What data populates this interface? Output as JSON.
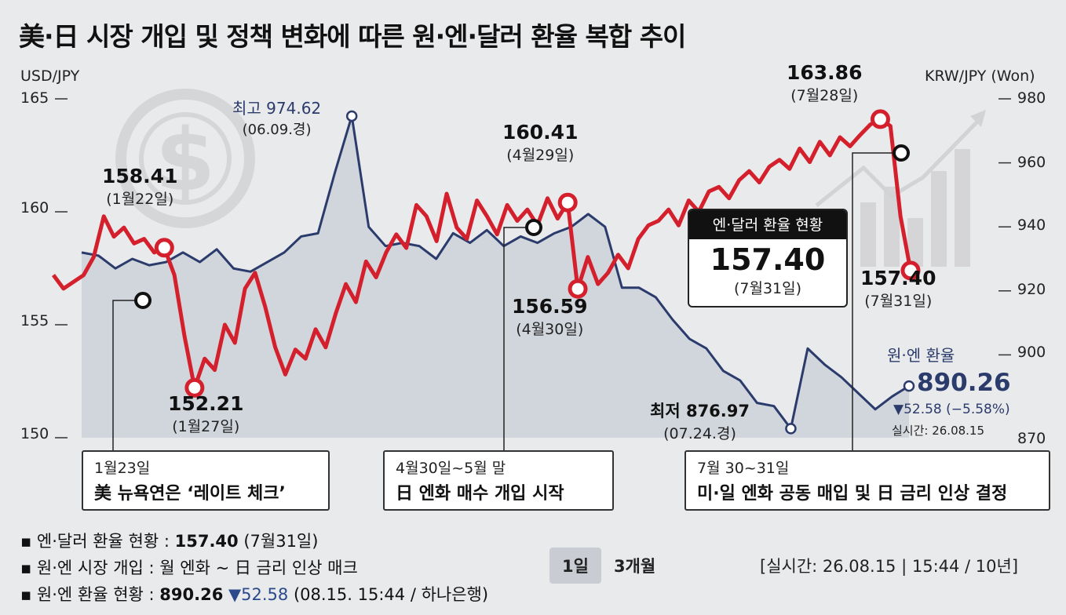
{
  "title": "美·日 시장 개입 및 정책 변화에 따른 원·엔·달러 환율 복합 추이",
  "left_axis_title": "USD/JPY",
  "right_axis_title": "KRW/JPY (Won)",
  "left_ticks": [
    "165",
    "160",
    "155",
    "150"
  ],
  "right_ticks": [
    "980",
    "960",
    "940",
    "920",
    "900",
    "870"
  ],
  "chart_data": {
    "type": "line",
    "title": "美·日 시장 개입 및 정책 변화에 따른 원·엔·달러 환율 복합 추이",
    "xlabel": "",
    "ylabel": "USD/JPY",
    "y2label": "KRW/JPY (Won)",
    "ylim": [
      150,
      165
    ],
    "y2lim": [
      870,
      980
    ],
    "series": [
      {
        "name": "USD/JPY",
        "axis": "left",
        "color": "#d4202c",
        "points": [
          [
            0,
            157.2
          ],
          [
            1,
            156.6
          ],
          [
            2,
            156.9
          ],
          [
            3,
            157.2
          ],
          [
            4,
            158.0
          ],
          [
            5,
            159.8
          ],
          [
            6,
            158.9
          ],
          [
            7,
            159.3
          ],
          [
            8,
            158.6
          ],
          [
            9,
            158.8
          ],
          [
            10,
            158.2
          ],
          [
            11,
            158.41
          ],
          [
            12,
            157.2
          ],
          [
            13,
            154.5
          ],
          [
            14,
            152.21
          ],
          [
            15,
            153.5
          ],
          [
            16,
            153.0
          ],
          [
            17,
            155.0
          ],
          [
            18,
            154.2
          ],
          [
            19,
            156.6
          ],
          [
            20,
            157.3
          ],
          [
            21,
            155.8
          ],
          [
            22,
            154.0
          ],
          [
            23,
            152.8
          ],
          [
            24,
            153.9
          ],
          [
            25,
            153.5
          ],
          [
            26,
            154.8
          ],
          [
            27,
            154.0
          ],
          [
            28,
            155.5
          ],
          [
            29,
            156.8
          ],
          [
            30,
            156.0
          ],
          [
            31,
            157.8
          ],
          [
            32,
            157.1
          ],
          [
            33,
            158.2
          ],
          [
            34,
            159.0
          ],
          [
            35,
            158.4
          ],
          [
            36,
            160.3
          ],
          [
            37,
            159.8
          ],
          [
            38,
            158.7
          ],
          [
            39,
            160.8
          ],
          [
            40,
            159.3
          ],
          [
            41,
            158.8
          ],
          [
            42,
            160.5
          ],
          [
            43,
            159.8
          ],
          [
            44,
            159.0
          ],
          [
            45,
            160.3
          ],
          [
            46,
            159.6
          ],
          [
            47,
            160.1
          ],
          [
            48,
            159.4
          ],
          [
            49,
            160.6
          ],
          [
            50,
            159.7
          ],
          [
            51,
            160.41
          ],
          [
            52,
            156.59
          ],
          [
            53,
            158.0
          ],
          [
            54,
            156.8
          ],
          [
            55,
            157.3
          ],
          [
            56,
            158.1
          ],
          [
            57,
            157.5
          ],
          [
            58,
            158.8
          ],
          [
            59,
            159.4
          ],
          [
            60,
            159.6
          ],
          [
            61,
            160.1
          ],
          [
            62,
            159.4
          ],
          [
            63,
            160.5
          ],
          [
            64,
            160.0
          ],
          [
            65,
            160.9
          ],
          [
            66,
            161.1
          ],
          [
            67,
            160.6
          ],
          [
            68,
            161.4
          ],
          [
            69,
            161.8
          ],
          [
            70,
            161.3
          ],
          [
            71,
            162.0
          ],
          [
            72,
            162.3
          ],
          [
            73,
            161.9
          ],
          [
            74,
            162.8
          ],
          [
            75,
            162.2
          ],
          [
            76,
            163.1
          ],
          [
            77,
            162.5
          ],
          [
            78,
            163.3
          ],
          [
            79,
            162.9
          ],
          [
            80,
            163.4
          ],
          [
            81,
            163.86
          ],
          [
            82,
            164.1
          ],
          [
            83,
            163.8
          ],
          [
            84,
            159.8
          ],
          [
            85,
            157.4
          ]
        ]
      },
      {
        "name": "KRW/JPY",
        "axis": "right",
        "color": "#2b3b6b",
        "points": [
          [
            0,
            932
          ],
          [
            1,
            931
          ],
          [
            2,
            927
          ],
          [
            3,
            930
          ],
          [
            4,
            928
          ],
          [
            5,
            929
          ],
          [
            6,
            932
          ],
          [
            7,
            929
          ],
          [
            8,
            933
          ],
          [
            9,
            927
          ],
          [
            10,
            926
          ],
          [
            11,
            929
          ],
          [
            12,
            932
          ],
          [
            13,
            937
          ],
          [
            14,
            938
          ],
          [
            15,
            957
          ],
          [
            16,
            974.62
          ],
          [
            17,
            940
          ],
          [
            18,
            934
          ],
          [
            19,
            935
          ],
          [
            20,
            934
          ],
          [
            21,
            930
          ],
          [
            22,
            938
          ],
          [
            23,
            935
          ],
          [
            24,
            939
          ],
          [
            25,
            934
          ],
          [
            26,
            937
          ],
          [
            27,
            935
          ],
          [
            28,
            938
          ],
          [
            29,
            940
          ],
          [
            30,
            944
          ],
          [
            31,
            940
          ],
          [
            32,
            921
          ],
          [
            33,
            921
          ],
          [
            34,
            918
          ],
          [
            35,
            911
          ],
          [
            36,
            905
          ],
          [
            37,
            902
          ],
          [
            38,
            895
          ],
          [
            39,
            892
          ],
          [
            40,
            885
          ],
          [
            41,
            884
          ],
          [
            42,
            876.97
          ],
          [
            43,
            902
          ],
          [
            44,
            897
          ],
          [
            45,
            893
          ],
          [
            46,
            888
          ],
          [
            47,
            883
          ],
          [
            48,
            887
          ],
          [
            49,
            890.26
          ]
        ]
      }
    ],
    "annotations": [
      {
        "label": "158.41",
        "date": "(1월22일)"
      },
      {
        "label": "152.21",
        "date": "(1월27일)"
      },
      {
        "label": "160.41",
        "date": "(4월29일)"
      },
      {
        "label": "156.59",
        "date": "(4월30일)"
      },
      {
        "label": "163.86",
        "date": "(7월28일)"
      },
      {
        "label": "157.40",
        "date": "(7월31일)"
      },
      {
        "label": "최고 974.62",
        "date": "(06.09.경)"
      },
      {
        "label": "최저 876.97",
        "date": "(07.24.경)"
      }
    ],
    "grid": false
  },
  "labels": {
    "p1_value": "158.41",
    "p1_date": "(1월22일)",
    "p2_value": "152.21",
    "p2_date": "(1월27일)",
    "p3_value": "160.41",
    "p3_date": "(4월29일)",
    "p4_value": "156.59",
    "p4_date": "(4월30일)",
    "p5_value": "163.86",
    "p5_date": "(7월28일)",
    "p6_value": "157.40",
    "p6_date": "(7월31일)",
    "krw_high": "최고 974.62",
    "krw_high_date": "(06.09.경)",
    "krw_low": "최저 876.97",
    "krw_low_date": "(07.24.경)"
  },
  "events": [
    {
      "date": "1월23일",
      "text": "美 뉴욕연은 ‘레이트 체크’"
    },
    {
      "date": "4월30일~5월 말",
      "text": "日 엔화 매수 개입 시작"
    },
    {
      "date": "7월 30~31일",
      "text": "미·일 엔화 공동 매입 및 日 금리 인상 결정"
    }
  ],
  "status_box": {
    "header": "엔·달러 환율 현황",
    "value": "157.40",
    "date": "(7월31일)"
  },
  "won_yen": {
    "label": "원·엔 환율",
    "value": "890.26",
    "change": "▼52.58 (−5.58%)",
    "realtime": "실시간: 26.08.15"
  },
  "footer": {
    "line1_label": "▪ 엔·달러 환율 현황 : ",
    "line1_value": "157.40",
    "line1_suffix": " (7월31일)",
    "line2": "▪ 원·엔 시장 개입 : 월 엔화 ~ 日 금리 인상 매크",
    "line3_label": "▪ 원·엔 환율 현황 : ",
    "line3_value": "890.26",
    "line3_change": " ▼52.58",
    "line3_suffix": " (08.15. 15:44 / 하나은행)"
  },
  "tabs": [
    "1일",
    "3개월"
  ],
  "timestamp": "[실시간: 26.08.15 | 15:44 / 10년]",
  "colors": {
    "usd": "#d4202c",
    "krw": "#2b3b6b",
    "bg": "#e9eaec"
  }
}
